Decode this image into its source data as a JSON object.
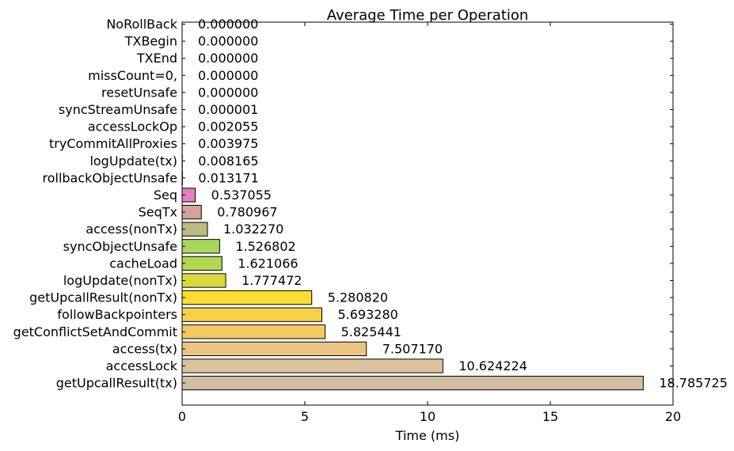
{
  "chart_data": {
    "type": "bar",
    "orientation": "horizontal",
    "title": "Average Time per Operation",
    "xlabel": "Time (ms)",
    "ylabel": "",
    "xlim": [
      0,
      20
    ],
    "xticks": [
      0,
      5,
      10,
      15,
      20
    ],
    "grid": false,
    "categories": [
      "NoRollBack",
      "TXBegin",
      "TXEnd",
      "missCount=0,",
      "resetUnsafe",
      "syncStreamUnsafe",
      "accessLockOp",
      "tryCommitAllProxies",
      "logUpdate(tx)",
      "rollbackObjectUnsafe",
      "Seq",
      "SeqTx",
      "access(nonTx)",
      "syncObjectUnsafe",
      "cacheLoad",
      "logUpdate(nonTx)",
      "getUpcallResult(nonTx)",
      "followBackpointers",
      "getConflictSetAndCommit",
      "access(tx)",
      "accessLock",
      "getUpcallResult(tx)"
    ],
    "values": [
      0.0,
      0.0,
      0.0,
      0.0,
      0.0,
      1e-06,
      0.002055,
      0.003975,
      0.008165,
      0.013171,
      0.537055,
      0.780967,
      1.03227,
      1.526802,
      1.621066,
      1.777472,
      5.28082,
      5.69328,
      5.825441,
      7.50717,
      10.624224,
      18.785725
    ],
    "labels": [
      "0.000000",
      "0.000000",
      "0.000000",
      "0.000000",
      "0.000000",
      "0.000001",
      "0.002055",
      "0.003975",
      "0.008165",
      "0.013171",
      "0.537055",
      "0.780967",
      "1.032270",
      "1.526802",
      "1.621066",
      "1.777472",
      "5.280820",
      "5.693280",
      "5.825441",
      "7.507170",
      "10.624224",
      "18.785725"
    ],
    "colors": [
      "#aa66cc",
      "#b266c8",
      "#bb66c4",
      "#c066c0",
      "#c866bb",
      "#cc66b2",
      "#d066aa",
      "#d466a0",
      "#d86a98",
      "#dc6e92",
      "#e080c0",
      "#d4a39a",
      "#bcbb80",
      "#a8d85a",
      "#b2d850",
      "#dad83c",
      "#fbdc30",
      "#f7d048",
      "#f2ca60",
      "#ecc585",
      "#dcc19a",
      "#d2bea2"
    ]
  }
}
